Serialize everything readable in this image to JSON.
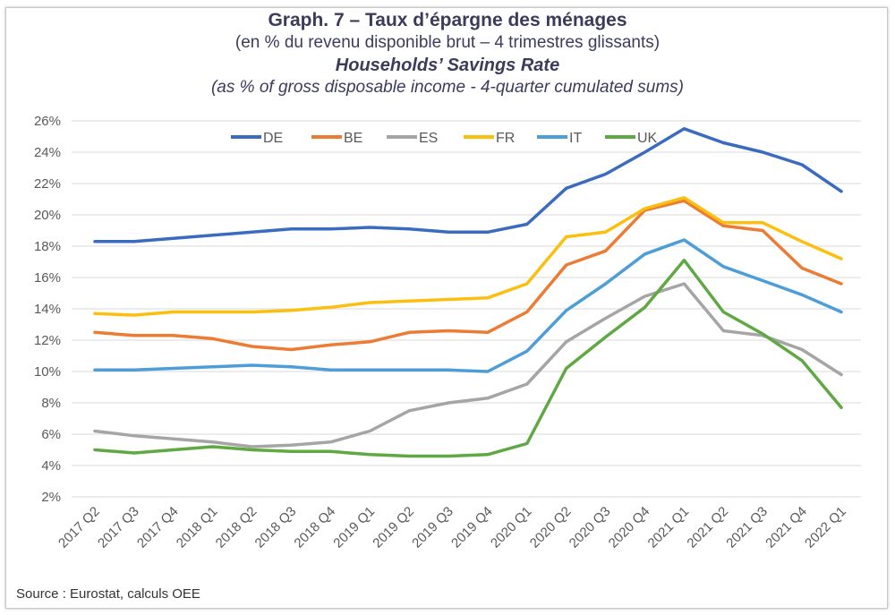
{
  "title": "Graph. 7 – Taux d’épargne des ménages",
  "subtitle": "(en % du revenu disponible brut – 4 trimestres glissants)",
  "title_en": "Households’ Savings Rate",
  "subtitle_en": "(as % of gross disposable income - 4-quarter cumulated sums)",
  "source": "Source : Eurostat, calculs OEE",
  "chart_data": {
    "type": "line",
    "ylim": [
      2,
      26
    ],
    "yticks": [
      "2%",
      "4%",
      "6%",
      "8%",
      "10%",
      "12%",
      "14%",
      "16%",
      "18%",
      "20%",
      "22%",
      "24%",
      "26%"
    ],
    "grid": true,
    "legend_position": "top-center",
    "categories": [
      "2017 Q2",
      "2017 Q3",
      "2017 Q4",
      "2018 Q1",
      "2018 Q2",
      "2018 Q3",
      "2018 Q4",
      "2019 Q1",
      "2019 Q2",
      "2019 Q3",
      "2019 Q4",
      "2020 Q1",
      "2020 Q2",
      "2020 Q3",
      "2020 Q4",
      "2021 Q1",
      "2021 Q2",
      "2021 Q3",
      "2021 Q4",
      "2022 Q1"
    ],
    "series": [
      {
        "name": "DE",
        "color": "#3a6bbf",
        "values": [
          18.3,
          18.3,
          18.5,
          18.7,
          18.9,
          19.1,
          19.1,
          19.2,
          19.1,
          18.9,
          18.9,
          19.4,
          21.7,
          22.6,
          24.0,
          25.5,
          24.6,
          24.0,
          23.2,
          21.5
        ]
      },
      {
        "name": "BE",
        "color": "#ec7b33",
        "values": [
          12.5,
          12.3,
          12.3,
          12.1,
          11.6,
          11.4,
          11.7,
          11.9,
          12.5,
          12.6,
          12.5,
          13.8,
          16.8,
          17.7,
          20.3,
          20.9,
          19.3,
          19.0,
          16.6,
          15.6
        ]
      },
      {
        "name": "ES",
        "color": "#a5a5a5",
        "values": [
          6.2,
          5.9,
          5.7,
          5.5,
          5.2,
          5.3,
          5.5,
          6.2,
          7.5,
          8.0,
          8.3,
          9.2,
          11.9,
          13.4,
          14.8,
          15.6,
          12.6,
          12.3,
          11.4,
          9.8
        ]
      },
      {
        "name": "FR",
        "color": "#fbbf10",
        "values": [
          13.7,
          13.6,
          13.8,
          13.8,
          13.8,
          13.9,
          14.1,
          14.4,
          14.5,
          14.6,
          14.7,
          15.6,
          18.6,
          18.9,
          20.4,
          21.1,
          19.5,
          19.5,
          18.3,
          17.2
        ]
      },
      {
        "name": "IT",
        "color": "#4d9ed8",
        "values": [
          10.1,
          10.1,
          10.2,
          10.3,
          10.4,
          10.3,
          10.1,
          10.1,
          10.1,
          10.1,
          10.0,
          11.3,
          13.9,
          15.6,
          17.5,
          18.4,
          16.7,
          15.8,
          14.9,
          13.8
        ]
      },
      {
        "name": "UK",
        "color": "#5fa843",
        "values": [
          5.0,
          4.8,
          5.0,
          5.2,
          5.0,
          4.9,
          4.9,
          4.7,
          4.6,
          4.6,
          4.7,
          5.4,
          10.2,
          12.2,
          14.1,
          17.1,
          13.8,
          12.4,
          10.7,
          7.7
        ]
      }
    ]
  }
}
